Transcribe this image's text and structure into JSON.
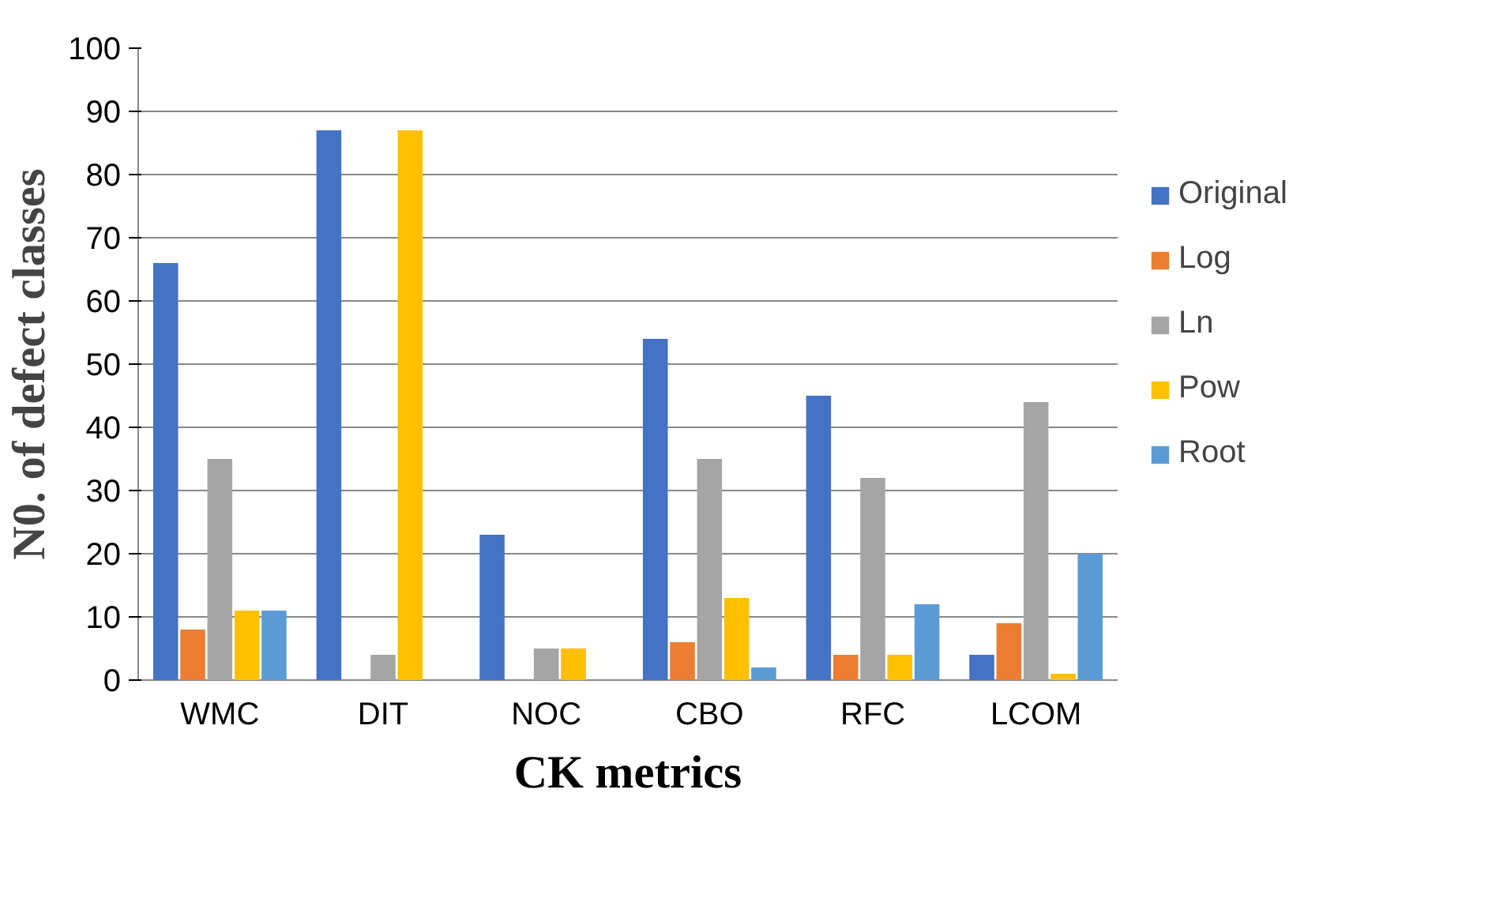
{
  "chart_data": {
    "type": "bar",
    "xlabel": "CK metrics",
    "ylabel": "N0. of defect classes",
    "categories": [
      "WMC",
      "DIT",
      "NOC",
      "CBO",
      "RFC",
      "LCOM"
    ],
    "series": [
      {
        "name": "Original",
        "color": "#4472c4",
        "values": [
          66,
          87,
          23,
          54,
          45,
          4
        ]
      },
      {
        "name": "Log",
        "color": "#ed7d31",
        "values": [
          8,
          null,
          null,
          6,
          4,
          9
        ]
      },
      {
        "name": "Ln",
        "color": "#a5a5a5",
        "values": [
          35,
          4,
          5,
          35,
          32,
          44
        ]
      },
      {
        "name": "Pow",
        "color": "#ffc000",
        "values": [
          11,
          87,
          5,
          13,
          4,
          1
        ]
      },
      {
        "name": "Root",
        "color": "#5b9bd5",
        "values": [
          11,
          null,
          null,
          2,
          12,
          20
        ]
      }
    ],
    "ylim": [
      0,
      100
    ],
    "yticks": [
      0,
      10,
      20,
      30,
      40,
      50,
      60,
      70,
      80,
      90,
      100
    ],
    "grid": "y",
    "legend": "right"
  }
}
